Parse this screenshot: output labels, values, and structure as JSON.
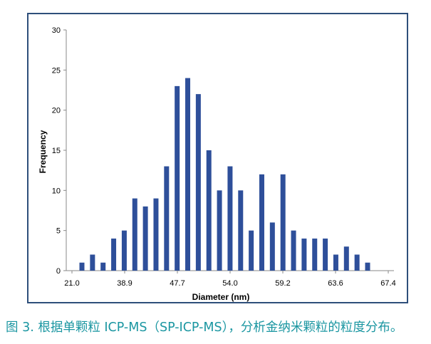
{
  "chart_data": {
    "type": "bar",
    "xlabel": "Diameter (nm)",
    "ylabel": "Frequency",
    "ylim": [
      0,
      30
    ],
    "yticks": [
      0,
      5,
      10,
      15,
      20,
      25,
      30
    ],
    "x_tick_labels": [
      "21.0",
      "38.9",
      "47.7",
      "54.0",
      "59.2",
      "63.6",
      "67.4"
    ],
    "bar_color": "#2e4f9a",
    "grid": false,
    "values": [
      1,
      2,
      1,
      4,
      5,
      9,
      8,
      9,
      13,
      23,
      24,
      22,
      15,
      10,
      13,
      10,
      5,
      12,
      6,
      12,
      5,
      4,
      4,
      4,
      2,
      3,
      2,
      1
    ]
  },
  "caption": "图 3. 根据单颗粒 ICP-MS（SP-ICP-MS），分析金纳米颗粒的粒度分布。",
  "colors": {
    "frame": "#2e4f7a",
    "caption": "#1a96a1"
  }
}
